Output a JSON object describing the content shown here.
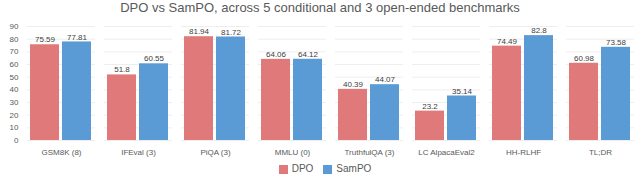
{
  "chart_data": {
    "type": "bar",
    "title": "DPO vs SamPO, across 5 conditional and 3 open-ended benchmarks",
    "categories": [
      "GSM8K (8)",
      "IFEval (3)",
      "PiQA (3)",
      "MMLU (0)",
      "TruthfulQA (3)",
      "LC AlpacaEval2",
      "HH-RLHF",
      "TL;DR"
    ],
    "series": [
      {
        "name": "DPO",
        "color": "#e07a7a",
        "values": [
          75.59,
          51.8,
          81.94,
          64.06,
          40.39,
          23.2,
          74.49,
          60.98
        ]
      },
      {
        "name": "SamPO",
        "color": "#5b9bd5",
        "values": [
          77.81,
          60.55,
          81.72,
          64.12,
          44.07,
          35.14,
          82.8,
          73.58
        ]
      }
    ],
    "ylim": [
      0,
      90
    ],
    "yticks": [
      0,
      10,
      20,
      30,
      40,
      50,
      60,
      70,
      80,
      90
    ],
    "grid": true,
    "data_labels": true,
    "legend": "bottom"
  }
}
